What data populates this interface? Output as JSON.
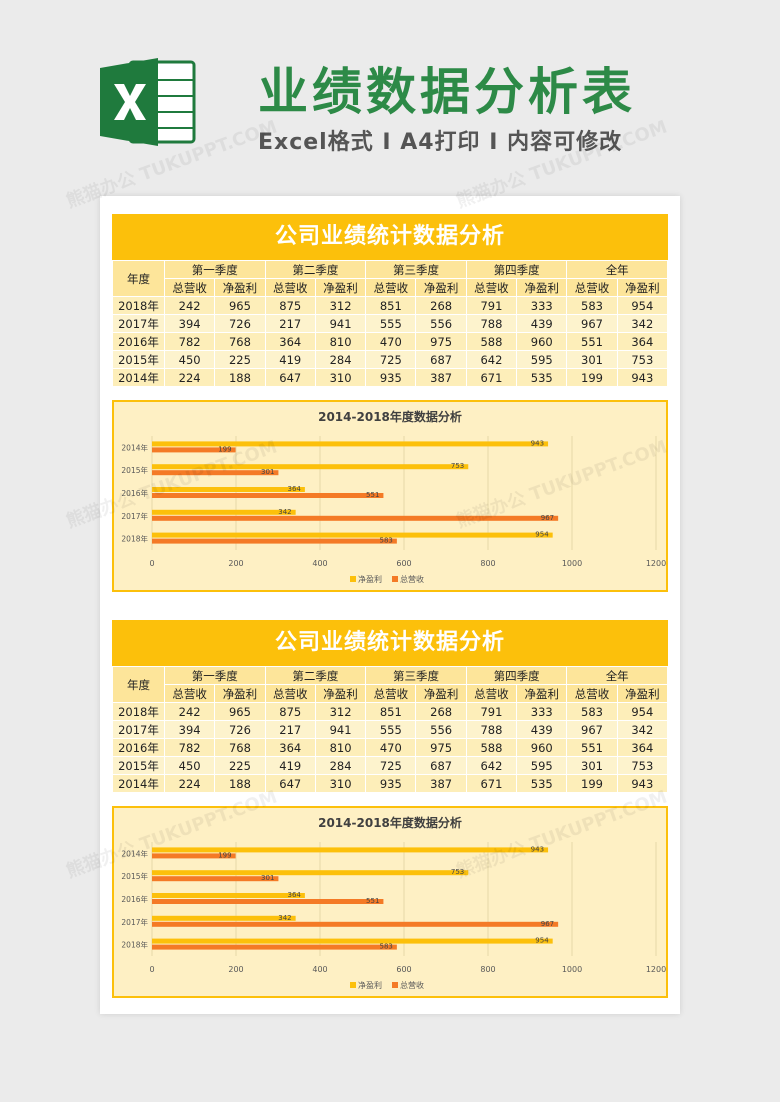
{
  "header": {
    "title": "业绩数据分析表",
    "subtitle": "Excel格式 I A4打印 I 内容可修改"
  },
  "sections": [
    {
      "title": "公司业绩统计数据分析",
      "table": {
        "year_header": "年度",
        "quarters": [
          "第一季度",
          "第二季度",
          "第三季度",
          "第四季度",
          "全年"
        ],
        "sub_headers": [
          "总营收",
          "净盈利"
        ],
        "rows": [
          {
            "year": "2018年",
            "values": [
              242,
              965,
              875,
              312,
              851,
              268,
              791,
              333,
              583,
              954
            ]
          },
          {
            "year": "2017年",
            "values": [
              394,
              726,
              217,
              941,
              555,
              556,
              788,
              439,
              967,
              342
            ]
          },
          {
            "year": "2016年",
            "values": [
              782,
              768,
              364,
              810,
              470,
              975,
              588,
              960,
              551,
              364
            ]
          },
          {
            "year": "2015年",
            "values": [
              450,
              225,
              419,
              284,
              725,
              687,
              642,
              595,
              301,
              753
            ]
          },
          {
            "year": "2014年",
            "values": [
              224,
              188,
              647,
              310,
              935,
              387,
              671,
              535,
              199,
              943
            ]
          }
        ]
      },
      "chart_data": {
        "type": "bar",
        "orientation": "horizontal",
        "title": "2014-2018年度数据分析",
        "categories": [
          "2014年",
          "2015年",
          "2016年",
          "2017年",
          "2018年"
        ],
        "series": [
          {
            "name": "净盈利",
            "values": [
              943,
              753,
              364,
              342,
              954
            ],
            "color": "#fcc00b"
          },
          {
            "name": "总营收",
            "values": [
              199,
              301,
              551,
              967,
              583
            ],
            "color": "#f47a26"
          }
        ],
        "xlim": [
          0,
          1200
        ],
        "xticks": [
          0,
          200,
          400,
          600,
          800,
          1000,
          1200
        ],
        "legend": "bottom",
        "grid": true
      }
    },
    {
      "title": "公司业绩统计数据分析",
      "table": {
        "year_header": "年度",
        "quarters": [
          "第一季度",
          "第二季度",
          "第三季度",
          "第四季度",
          "全年"
        ],
        "sub_headers": [
          "总营收",
          "净盈利"
        ],
        "rows": [
          {
            "year": "2018年",
            "values": [
              242,
              965,
              875,
              312,
              851,
              268,
              791,
              333,
              583,
              954
            ]
          },
          {
            "year": "2017年",
            "values": [
              394,
              726,
              217,
              941,
              555,
              556,
              788,
              439,
              967,
              342
            ]
          },
          {
            "year": "2016年",
            "values": [
              782,
              768,
              364,
              810,
              470,
              975,
              588,
              960,
              551,
              364
            ]
          },
          {
            "year": "2015年",
            "values": [
              450,
              225,
              419,
              284,
              725,
              687,
              642,
              595,
              301,
              753
            ]
          },
          {
            "year": "2014年",
            "values": [
              224,
              188,
              647,
              310,
              935,
              387,
              671,
              535,
              199,
              943
            ]
          }
        ]
      },
      "chart_data": {
        "type": "bar",
        "orientation": "horizontal",
        "title": "2014-2018年度数据分析",
        "categories": [
          "2014年",
          "2015年",
          "2016年",
          "2017年",
          "2018年"
        ],
        "series": [
          {
            "name": "净盈利",
            "values": [
              943,
              753,
              364,
              342,
              954
            ],
            "color": "#fcc00b"
          },
          {
            "name": "总营收",
            "values": [
              199,
              301,
              551,
              967,
              583
            ],
            "color": "#f47a26"
          }
        ],
        "xlim": [
          0,
          1200
        ],
        "xticks": [
          0,
          200,
          400,
          600,
          800,
          1000,
          1200
        ],
        "legend": "bottom",
        "grid": true
      }
    }
  ],
  "watermark": "熊猫办公 TUKUPPT.COM",
  "colors": {
    "brand_green": "#2d8a47",
    "accent_yellow": "#fcc00b",
    "accent_orange": "#f47a26"
  }
}
